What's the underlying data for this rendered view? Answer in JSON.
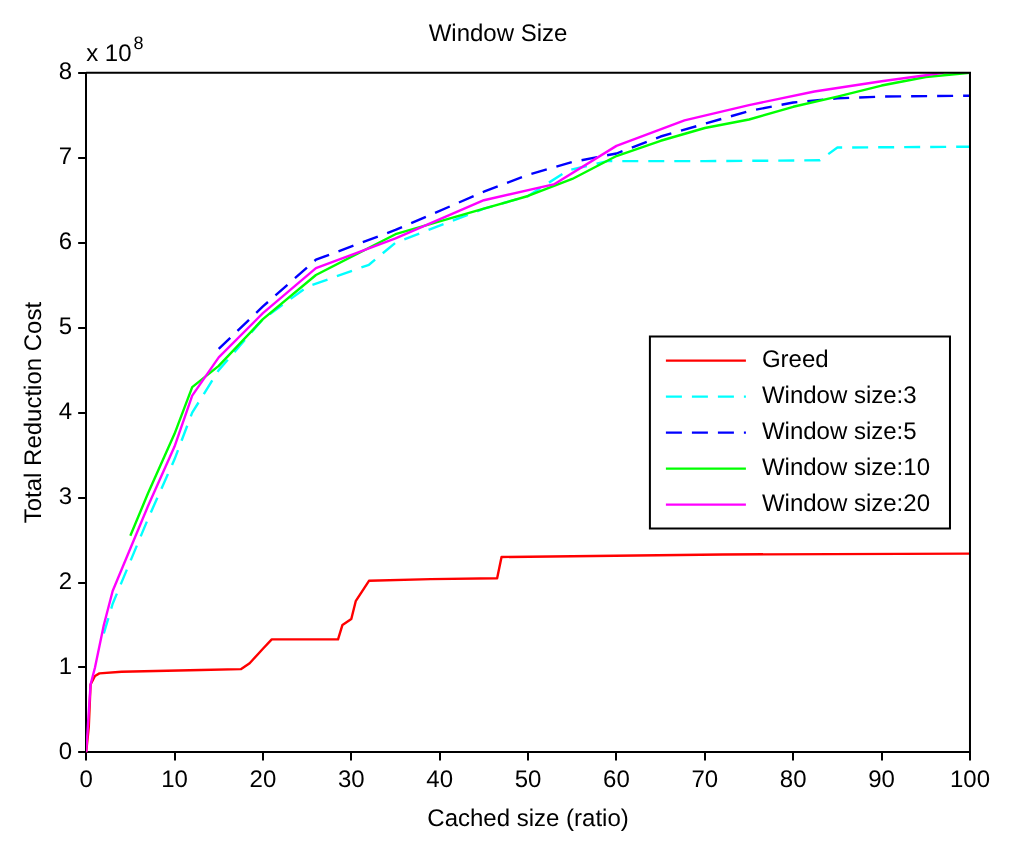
{
  "chart_data": {
    "type": "line",
    "title": "Window Size",
    "xlabel": "Cached size (ratio)",
    "ylabel": "Total Reduction Cost",
    "annotations": [
      "x 10$^{8}$"
    ],
    "xlim": [
      0,
      100
    ],
    "xticks": [
      0,
      10,
      20,
      30,
      40,
      50,
      60,
      70,
      80,
      90,
      100
    ],
    "ylim": [
      0,
      8
    ],
    "yticks": [
      0,
      1,
      2,
      3,
      4,
      5,
      6,
      7,
      8
    ],
    "grid": false,
    "legend": "right",
    "marker": "none",
    "series": [
      {
        "name": "Greed",
        "color": "#ff0000",
        "line_style": "solid",
        "x": [
          0,
          0.3,
          0.5,
          1,
          1.5,
          4,
          13,
          17.5,
          18.5,
          20,
          21,
          28.5,
          29,
          30,
          30.5,
          32,
          39,
          46.5,
          47,
          72,
          100
        ],
        "values": [
          0,
          0.3,
          0.8,
          0.9,
          0.93,
          0.95,
          0.97,
          0.98,
          1.05,
          1.22,
          1.33,
          1.33,
          1.5,
          1.57,
          1.78,
          2.02,
          2.04,
          2.05,
          2.3,
          2.33,
          2.34
        ]
      },
      {
        "name": "Window size:3",
        "color": "#00ffff",
        "line_style": "dashed",
        "x": [
          2,
          3,
          5,
          7,
          10,
          12,
          15,
          20,
          25,
          32,
          35,
          40,
          45,
          50,
          54.5,
          59,
          70,
          83,
          85,
          100
        ],
        "values": [
          1.4,
          1.75,
          2.25,
          2.75,
          3.45,
          4.0,
          4.5,
          5.1,
          5.48,
          5.74,
          6.0,
          6.2,
          6.4,
          6.55,
          6.85,
          6.96,
          6.96,
          6.97,
          7.12,
          7.13
        ]
      },
      {
        "name": "Window size:5",
        "color": "#0000ff",
        "line_style": "dashed",
        "x": [
          15,
          20,
          26,
          35,
          45,
          50,
          55,
          60,
          65,
          70,
          75,
          80,
          85,
          90,
          100
        ],
        "values": [
          4.75,
          5.25,
          5.8,
          6.15,
          6.6,
          6.8,
          6.95,
          7.05,
          7.25,
          7.4,
          7.55,
          7.65,
          7.7,
          7.72,
          7.73
        ]
      },
      {
        "name": "Window size:10",
        "color": "#00ff00",
        "line_style": "solid",
        "x": [
          5,
          7,
          10,
          12,
          15,
          20,
          26,
          35,
          45,
          50,
          55,
          60,
          65,
          70,
          75,
          80,
          85,
          90,
          95,
          100
        ],
        "values": [
          2.55,
          3.05,
          3.75,
          4.3,
          4.55,
          5.1,
          5.62,
          6.1,
          6.4,
          6.55,
          6.75,
          7.02,
          7.2,
          7.35,
          7.45,
          7.6,
          7.72,
          7.85,
          7.95,
          8.0
        ]
      },
      {
        "name": "Window size:20",
        "color": "#ff00ff",
        "line_style": "solid",
        "x": [
          0,
          0.5,
          1,
          2,
          3,
          5,
          7,
          10,
          12,
          15,
          20,
          26,
          35,
          45,
          53,
          60,
          67.7,
          75,
          82.4,
          90,
          97
        ],
        "values": [
          0,
          0.8,
          1.0,
          1.5,
          1.9,
          2.4,
          2.9,
          3.6,
          4.2,
          4.65,
          5.17,
          5.7,
          6.05,
          6.5,
          6.69,
          7.14,
          7.44,
          7.62,
          7.78,
          7.9,
          8.0
        ]
      }
    ]
  }
}
